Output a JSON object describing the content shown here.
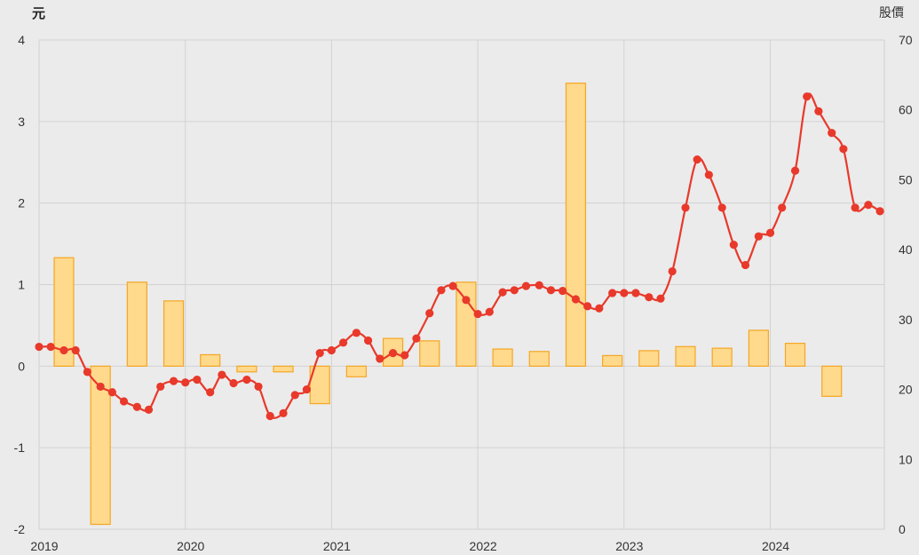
{
  "chart_data": {
    "type": "bar+line",
    "left_axis": {
      "unit": "元",
      "ylim": [
        -2,
        4
      ],
      "ticks": [
        4,
        3,
        2,
        1,
        0,
        -1,
        -2
      ]
    },
    "right_axis": {
      "unit": "股價",
      "ylim": [
        0,
        70
      ],
      "ticks": [
        70,
        60,
        50,
        40,
        30,
        20,
        10,
        0
      ]
    },
    "x_axis": {
      "ticks": [
        "2019",
        "2020",
        "2021",
        "2022",
        "2023",
        "2024"
      ],
      "xlim": [
        2019.0,
        2024.78
      ]
    },
    "bars": {
      "axis": "left",
      "points": [
        {
          "x": 2019.17,
          "y": 1.33
        },
        {
          "x": 2019.42,
          "y": -1.94
        },
        {
          "x": 2019.67,
          "y": 1.03
        },
        {
          "x": 2019.92,
          "y": 0.8
        },
        {
          "x": 2020.17,
          "y": 0.14
        },
        {
          "x": 2020.42,
          "y": -0.07
        },
        {
          "x": 2020.67,
          "y": -0.07
        },
        {
          "x": 2020.92,
          "y": -0.46
        },
        {
          "x": 2021.17,
          "y": -0.13
        },
        {
          "x": 2021.42,
          "y": 0.34
        },
        {
          "x": 2021.67,
          "y": 0.31
        },
        {
          "x": 2021.92,
          "y": 1.03
        },
        {
          "x": 2022.17,
          "y": 0.21
        },
        {
          "x": 2022.42,
          "y": 0.18
        },
        {
          "x": 2022.67,
          "y": 3.47
        },
        {
          "x": 2022.92,
          "y": 0.13
        },
        {
          "x": 2023.17,
          "y": 0.19
        },
        {
          "x": 2023.42,
          "y": 0.24
        },
        {
          "x": 2023.67,
          "y": 0.22
        },
        {
          "x": 2023.92,
          "y": 0.44
        },
        {
          "x": 2024.17,
          "y": 0.28
        },
        {
          "x": 2024.42,
          "y": -0.37
        }
      ]
    },
    "line": {
      "axis": "right",
      "points": [
        {
          "x": 2019.0,
          "y": 26.1
        },
        {
          "x": 2019.08,
          "y": 26.1
        },
        {
          "x": 2019.17,
          "y": 25.6
        },
        {
          "x": 2019.25,
          "y": 25.6
        },
        {
          "x": 2019.33,
          "y": 22.5
        },
        {
          "x": 2019.42,
          "y": 20.4
        },
        {
          "x": 2019.5,
          "y": 19.6
        },
        {
          "x": 2019.58,
          "y": 18.3
        },
        {
          "x": 2019.67,
          "y": 17.5
        },
        {
          "x": 2019.75,
          "y": 17.1
        },
        {
          "x": 2019.83,
          "y": 20.4
        },
        {
          "x": 2019.92,
          "y": 21.2
        },
        {
          "x": 2020.0,
          "y": 21.0
        },
        {
          "x": 2020.08,
          "y": 21.4
        },
        {
          "x": 2020.17,
          "y": 19.6
        },
        {
          "x": 2020.25,
          "y": 22.1
        },
        {
          "x": 2020.33,
          "y": 20.9
        },
        {
          "x": 2020.42,
          "y": 21.4
        },
        {
          "x": 2020.5,
          "y": 20.4
        },
        {
          "x": 2020.58,
          "y": 16.2
        },
        {
          "x": 2020.67,
          "y": 16.6
        },
        {
          "x": 2020.75,
          "y": 19.2
        },
        {
          "x": 2020.83,
          "y": 20.0
        },
        {
          "x": 2020.92,
          "y": 25.2
        },
        {
          "x": 2021.0,
          "y": 25.6
        },
        {
          "x": 2021.08,
          "y": 26.7
        },
        {
          "x": 2021.17,
          "y": 28.1
        },
        {
          "x": 2021.25,
          "y": 27.0
        },
        {
          "x": 2021.33,
          "y": 24.4
        },
        {
          "x": 2021.42,
          "y": 25.2
        },
        {
          "x": 2021.5,
          "y": 24.9
        },
        {
          "x": 2021.58,
          "y": 27.3
        },
        {
          "x": 2021.67,
          "y": 30.9
        },
        {
          "x": 2021.75,
          "y": 34.2
        },
        {
          "x": 2021.83,
          "y": 34.8
        },
        {
          "x": 2021.92,
          "y": 32.8
        },
        {
          "x": 2022.0,
          "y": 30.8
        },
        {
          "x": 2022.08,
          "y": 31.1
        },
        {
          "x": 2022.17,
          "y": 33.9
        },
        {
          "x": 2022.25,
          "y": 34.2
        },
        {
          "x": 2022.33,
          "y": 34.8
        },
        {
          "x": 2022.42,
          "y": 34.9
        },
        {
          "x": 2022.5,
          "y": 34.2
        },
        {
          "x": 2022.58,
          "y": 34.1
        },
        {
          "x": 2022.67,
          "y": 32.9
        },
        {
          "x": 2022.75,
          "y": 31.9
        },
        {
          "x": 2022.83,
          "y": 31.6
        },
        {
          "x": 2022.92,
          "y": 33.8
        },
        {
          "x": 2023.0,
          "y": 33.8
        },
        {
          "x": 2023.08,
          "y": 33.8
        },
        {
          "x": 2023.17,
          "y": 33.2
        },
        {
          "x": 2023.25,
          "y": 33.0
        },
        {
          "x": 2023.33,
          "y": 36.9
        },
        {
          "x": 2023.42,
          "y": 46.0
        },
        {
          "x": 2023.5,
          "y": 52.9
        },
        {
          "x": 2023.58,
          "y": 50.7
        },
        {
          "x": 2023.67,
          "y": 46.0
        },
        {
          "x": 2023.75,
          "y": 40.7
        },
        {
          "x": 2023.83,
          "y": 37.8
        },
        {
          "x": 2023.92,
          "y": 41.9
        },
        {
          "x": 2024.0,
          "y": 42.4
        },
        {
          "x": 2024.08,
          "y": 46.0
        },
        {
          "x": 2024.17,
          "y": 51.3
        },
        {
          "x": 2024.25,
          "y": 61.9
        },
        {
          "x": 2024.33,
          "y": 59.8
        },
        {
          "x": 2024.42,
          "y": 56.7
        },
        {
          "x": 2024.5,
          "y": 54.4
        },
        {
          "x": 2024.58,
          "y": 46.0
        },
        {
          "x": 2024.67,
          "y": 46.4
        },
        {
          "x": 2024.75,
          "y": 45.5
        }
      ]
    },
    "colors": {
      "bar_fill": "#ffd98c",
      "bar_stroke": "#f5a623",
      "line": "#e8392b",
      "background": "#ebebeb",
      "grid": "#d2d2d2"
    },
    "grid": true,
    "legend": "none"
  }
}
